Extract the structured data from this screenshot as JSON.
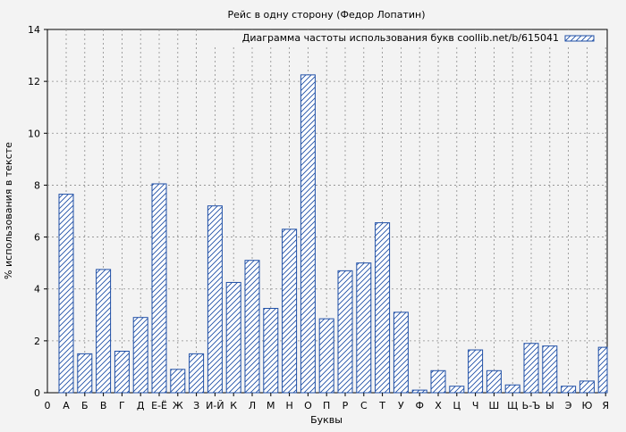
{
  "chart_data": {
    "type": "bar",
    "title": "Рейс в одну сторону (Федор Лопатин)",
    "xlabel": "Буквы",
    "ylabel": "% использования в тексте",
    "ylim": [
      0,
      14
    ],
    "yticks": [
      "0",
      "2",
      "4",
      "6",
      "8",
      "10",
      "12",
      "14"
    ],
    "zero_label": "0",
    "grid": true,
    "legend_position": "top-right",
    "bar_color": "#1f4fa6",
    "hatch": "diagonal",
    "series": [
      {
        "name": "Диаграмма частоты использования букв coollib.net/b/615041",
        "values": [
          7.65,
          1.5,
          4.75,
          1.6,
          2.9,
          8.05,
          0.9,
          1.5,
          7.2,
          4.25,
          5.1,
          3.25,
          6.3,
          12.25,
          2.85,
          4.7,
          5.0,
          6.55,
          3.1,
          0.1,
          0.85,
          0.25,
          1.65,
          0.85,
          0.3,
          1.9,
          1.8,
          0.25,
          0.45,
          1.75
        ]
      }
    ],
    "categories": [
      "А",
      "Б",
      "В",
      "Г",
      "Д",
      "Е-Ё",
      "Ж",
      "З",
      "И-Й",
      "К",
      "Л",
      "М",
      "Н",
      "О",
      "П",
      "Р",
      "С",
      "Т",
      "У",
      "Ф",
      "Х",
      "Ц",
      "Ч",
      "Ш",
      "Щ",
      "Ь-Ъ",
      "Ы",
      "Э",
      "Ю",
      "Я"
    ]
  }
}
